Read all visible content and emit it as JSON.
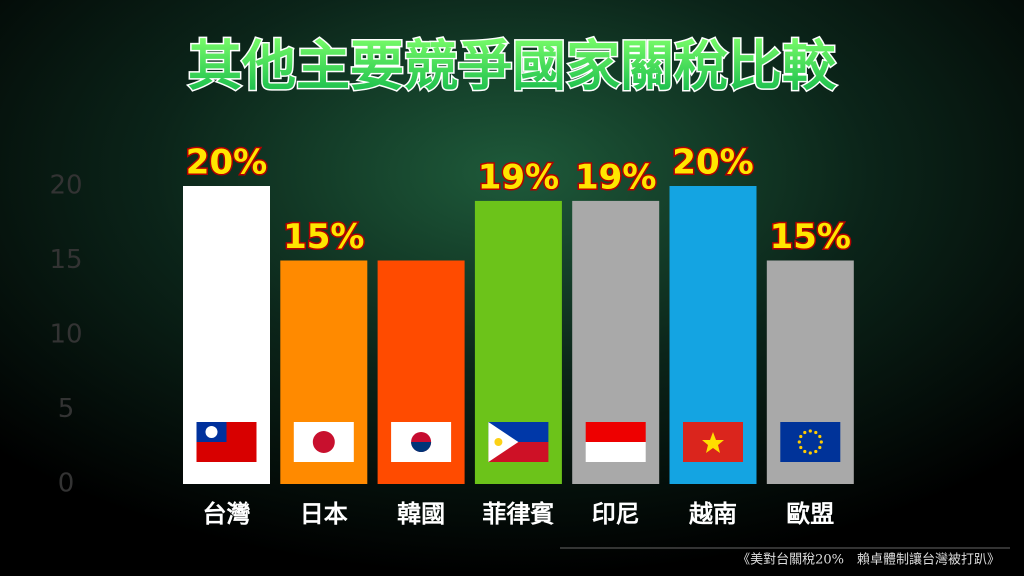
{
  "chart_data": {
    "type": "bar",
    "title": "其他主要競爭國家關稅比較",
    "categories": [
      "台灣",
      "日本",
      "韓國",
      "菲律賓",
      "印尼",
      "越南",
      "歐盟"
    ],
    "values": [
      20,
      15,
      15,
      19,
      19,
      20,
      15
    ],
    "value_labels": [
      "20%",
      "15%",
      null,
      "19%",
      "19%",
      "20%",
      "15%"
    ],
    "colors": [
      "#ffffff",
      "#ff8a00",
      "#ff4b00",
      "#6cc31a",
      "#a9a9a9",
      "#14a4e2",
      "#a9a9a9"
    ],
    "ylim": [
      0,
      20
    ],
    "yticks": [
      0,
      5,
      10,
      15,
      20
    ],
    "source": "《美對台關稅20%　賴卓體制讓台灣被打趴》"
  }
}
